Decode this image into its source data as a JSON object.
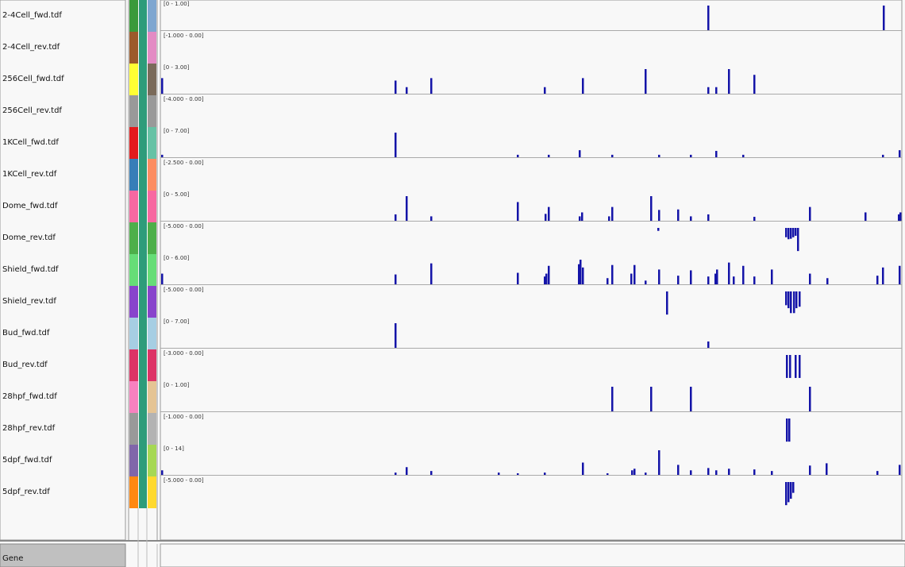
{
  "tracks": [
    {
      "name": "2-4Cell_fwd.tdf",
      "range": {
        "label": "[0 - 1.00]",
        "min": 0,
        "max": 1
      },
      "colors": [
        "#3a9a3a",
        "#7ea6d0"
      ],
      "bars": [
        {
          "position": 689,
          "value": 1
        },
        {
          "position": 910,
          "value": 1
        }
      ]
    },
    {
      "name": "2-4Cell_rev.tdf",
      "range": {
        "label": "[-1.000 - 0.00]",
        "min": -1,
        "max": 0
      },
      "colors": [
        "#9c5a2a",
        "#e38bc4"
      ],
      "bars": []
    },
    {
      "name": "256Cell_fwd.tdf",
      "range": {
        "label": "[0 - 3.00]",
        "min": 0,
        "max": 3
      },
      "colors": [
        "#ffff33",
        "#7a6a5a"
      ],
      "bars": [
        {
          "position": 1,
          "value": 1.9
        },
        {
          "position": 295,
          "value": 1.6
        },
        {
          "position": 309,
          "value": 0.8
        },
        {
          "position": 340,
          "value": 1.9
        },
        {
          "position": 483,
          "value": 0.8
        },
        {
          "position": 531,
          "value": 1.9
        },
        {
          "position": 610,
          "value": 3
        },
        {
          "position": 689,
          "value": 0.8
        },
        {
          "position": 699,
          "value": 0.8
        },
        {
          "position": 715,
          "value": 3
        },
        {
          "position": 747,
          "value": 2.3
        }
      ]
    },
    {
      "name": "256Cell_rev.tdf",
      "range": {
        "label": "[-4.000 - 0.00]",
        "min": -4,
        "max": 0
      },
      "colors": [
        "#999999",
        "#999999"
      ],
      "bars": []
    },
    {
      "name": "1KCell_fwd.tdf",
      "range": {
        "label": "[0 - 7.00]",
        "min": 0,
        "max": 7
      },
      "colors": [
        "#e31a1c",
        "#66c2a5"
      ],
      "bars": [
        {
          "position": 1,
          "value": 0.7
        },
        {
          "position": 295,
          "value": 7
        },
        {
          "position": 449,
          "value": 0.7
        },
        {
          "position": 488,
          "value": 0.7
        },
        {
          "position": 527,
          "value": 2
        },
        {
          "position": 568,
          "value": 0.7
        },
        {
          "position": 627,
          "value": 0.7
        },
        {
          "position": 667,
          "value": 0.7
        },
        {
          "position": 699,
          "value": 1.8
        },
        {
          "position": 733,
          "value": 0.7
        },
        {
          "position": 909,
          "value": 0.7
        },
        {
          "position": 930,
          "value": 2
        }
      ]
    },
    {
      "name": "1KCell_rev.tdf",
      "range": {
        "label": "[-2.500 - 0.00]",
        "min": -2.5,
        "max": 0
      },
      "colors": [
        "#377eb8",
        "#fc8d62"
      ],
      "bars": []
    },
    {
      "name": "Dome_fwd.tdf",
      "range": {
        "label": "[0 - 5.00]",
        "min": 0,
        "max": 5
      },
      "colors": [
        "#f768a1",
        "#f768a1"
      ],
      "bars": [
        {
          "position": 295,
          "value": 1.3
        },
        {
          "position": 309,
          "value": 5
        },
        {
          "position": 340,
          "value": 0.9
        },
        {
          "position": 449,
          "value": 3.8
        },
        {
          "position": 484,
          "value": 1.4
        },
        {
          "position": 488,
          "value": 2.8
        },
        {
          "position": 527,
          "value": 0.9
        },
        {
          "position": 530,
          "value": 1.7
        },
        {
          "position": 564,
          "value": 0.9
        },
        {
          "position": 568,
          "value": 2.8
        },
        {
          "position": 617,
          "value": 5
        },
        {
          "position": 627,
          "value": 2.2
        },
        {
          "position": 651,
          "value": 2.3
        },
        {
          "position": 667,
          "value": 0.9
        },
        {
          "position": 689,
          "value": 1.3
        },
        {
          "position": 747,
          "value": 0.8
        },
        {
          "position": 817,
          "value": 2.8
        },
        {
          "position": 887,
          "value": 1.7
        },
        {
          "position": 929,
          "value": 1.3
        },
        {
          "position": 931,
          "value": 1.7
        }
      ]
    },
    {
      "name": "Dome_rev.tdf",
      "range": {
        "label": "[-5.000 - 0.00]",
        "min": -5,
        "max": 0
      },
      "colors": [
        "#4daf4a",
        "#4daf4a"
      ],
      "bars": [
        {
          "position": 626,
          "value": -0.6
        },
        {
          "position": 787,
          "value": -1.9
        },
        {
          "position": 790,
          "value": -2.3
        },
        {
          "position": 793,
          "value": -2.2
        },
        {
          "position": 796,
          "value": -1.9
        },
        {
          "position": 799,
          "value": -1.6
        },
        {
          "position": 802,
          "value": -4.7
        }
      ]
    },
    {
      "name": "Shield_fwd.tdf",
      "range": {
        "label": "[0 - 6.00]",
        "min": 0,
        "max": 6
      },
      "colors": [
        "#66dd77",
        "#66dd77"
      ],
      "bars": [
        {
          "position": 1,
          "value": 2.6
        },
        {
          "position": 295,
          "value": 2.4
        },
        {
          "position": 340,
          "value": 5.1
        },
        {
          "position": 449,
          "value": 2.8
        },
        {
          "position": 483,
          "value": 1.9
        },
        {
          "position": 485,
          "value": 2.6
        },
        {
          "position": 488,
          "value": 4.5
        },
        {
          "position": 526,
          "value": 4.9
        },
        {
          "position": 528,
          "value": 6
        },
        {
          "position": 531,
          "value": 4.1
        },
        {
          "position": 562,
          "value": 1.5
        },
        {
          "position": 568,
          "value": 4.7
        },
        {
          "position": 592,
          "value": 2.6
        },
        {
          "position": 596,
          "value": 4.7
        },
        {
          "position": 610,
          "value": 0.9
        },
        {
          "position": 627,
          "value": 3.6
        },
        {
          "position": 651,
          "value": 2.1
        },
        {
          "position": 667,
          "value": 3.4
        },
        {
          "position": 689,
          "value": 1.9
        },
        {
          "position": 698,
          "value": 2.6
        },
        {
          "position": 700,
          "value": 3.6
        },
        {
          "position": 715,
          "value": 5.3
        },
        {
          "position": 721,
          "value": 1.9
        },
        {
          "position": 733,
          "value": 4.5
        },
        {
          "position": 747,
          "value": 1.9
        },
        {
          "position": 769,
          "value": 3.6
        },
        {
          "position": 817,
          "value": 2.6
        },
        {
          "position": 839,
          "value": 1.5
        },
        {
          "position": 902,
          "value": 2.1
        },
        {
          "position": 909,
          "value": 4.1
        },
        {
          "position": 930,
          "value": 4.5
        }
      ]
    },
    {
      "name": "Shield_rev.tdf",
      "range": {
        "label": "[-5.000 - 0.00]",
        "min": -5,
        "max": 0
      },
      "colors": [
        "#8844cc",
        "#8844cc"
      ],
      "bars": [
        {
          "position": 637,
          "value": -4.7
        },
        {
          "position": 787,
          "value": -2.8
        },
        {
          "position": 790,
          "value": -3.4
        },
        {
          "position": 793,
          "value": -4.4
        },
        {
          "position": 797,
          "value": -4.4
        },
        {
          "position": 800,
          "value": -3.4
        },
        {
          "position": 804,
          "value": -3.1
        }
      ]
    },
    {
      "name": "Bud_fwd.tdf",
      "range": {
        "label": "[0 - 7.00]",
        "min": 0,
        "max": 7
      },
      "colors": [
        "#a6cee3",
        "#a6cee3"
      ],
      "bars": [
        {
          "position": 295,
          "value": 7
        },
        {
          "position": 689,
          "value": 1.8
        }
      ]
    },
    {
      "name": "Bud_rev.tdf",
      "range": {
        "label": "[-3.000 - 0.00]",
        "min": -3,
        "max": 0
      },
      "colors": [
        "#dd3366",
        "#dd3366"
      ],
      "bars": [
        {
          "position": 788,
          "value": -2.8
        },
        {
          "position": 792,
          "value": -2.8
        },
        {
          "position": 799,
          "value": -2.8
        },
        {
          "position": 804,
          "value": -2.8
        }
      ]
    },
    {
      "name": "28hpf_fwd.tdf",
      "range": {
        "label": "[0 - 1.00]",
        "min": 0,
        "max": 1
      },
      "colors": [
        "#f781bf",
        "#e5c494"
      ],
      "bars": [
        {
          "position": 568,
          "value": 1
        },
        {
          "position": 617,
          "value": 1
        },
        {
          "position": 667,
          "value": 1
        },
        {
          "position": 817,
          "value": 1
        }
      ]
    },
    {
      "name": "28hpf_rev.tdf",
      "range": {
        "label": "[-1.000 - 0.00]",
        "min": -1,
        "max": 0
      },
      "colors": [
        "#999999",
        "#b3b3b3"
      ],
      "bars": [
        {
          "position": 788,
          "value": -0.94
        },
        {
          "position": 791,
          "value": -0.94
        }
      ]
    },
    {
      "name": "5dpf_fwd.tdf",
      "range": {
        "label": "[0 - 14]",
        "min": 0,
        "max": 14
      },
      "colors": [
        "#8066aa",
        "#a6d854"
      ],
      "bars": [
        {
          "position": 1,
          "value": 2.6
        },
        {
          "position": 295,
          "value": 1.3
        },
        {
          "position": 309,
          "value": 4.4
        },
        {
          "position": 340,
          "value": 2.2
        },
        {
          "position": 425,
          "value": 1.3
        },
        {
          "position": 449,
          "value": 0.9
        },
        {
          "position": 483,
          "value": 1.3
        },
        {
          "position": 531,
          "value": 7
        },
        {
          "position": 562,
          "value": 0.9
        },
        {
          "position": 593,
          "value": 2.6
        },
        {
          "position": 596,
          "value": 3.5
        },
        {
          "position": 610,
          "value": 1.3
        },
        {
          "position": 627,
          "value": 14
        },
        {
          "position": 651,
          "value": 5.7
        },
        {
          "position": 667,
          "value": 2.6
        },
        {
          "position": 689,
          "value": 3.9
        },
        {
          "position": 699,
          "value": 2.6
        },
        {
          "position": 715,
          "value": 3.5
        },
        {
          "position": 747,
          "value": 3.1
        },
        {
          "position": 769,
          "value": 2.2
        },
        {
          "position": 817,
          "value": 5.3
        },
        {
          "position": 838,
          "value": 6.6
        },
        {
          "position": 902,
          "value": 2.2
        },
        {
          "position": 930,
          "value": 5.7
        }
      ]
    },
    {
      "name": "5dpf_rev.tdf",
      "range": {
        "label": "[-5.000 - 0.00]",
        "min": -5,
        "max": 0
      },
      "colors": [
        "#ff8811",
        "#ffd92f"
      ],
      "bars": [
        {
          "position": 787,
          "value": -4.7
        },
        {
          "position": 790,
          "value": -4.1
        },
        {
          "position": 793,
          "value": -3.4
        },
        {
          "position": 796,
          "value": -2.2
        }
      ]
    }
  ],
  "gene_track": {
    "name": "Gene"
  }
}
